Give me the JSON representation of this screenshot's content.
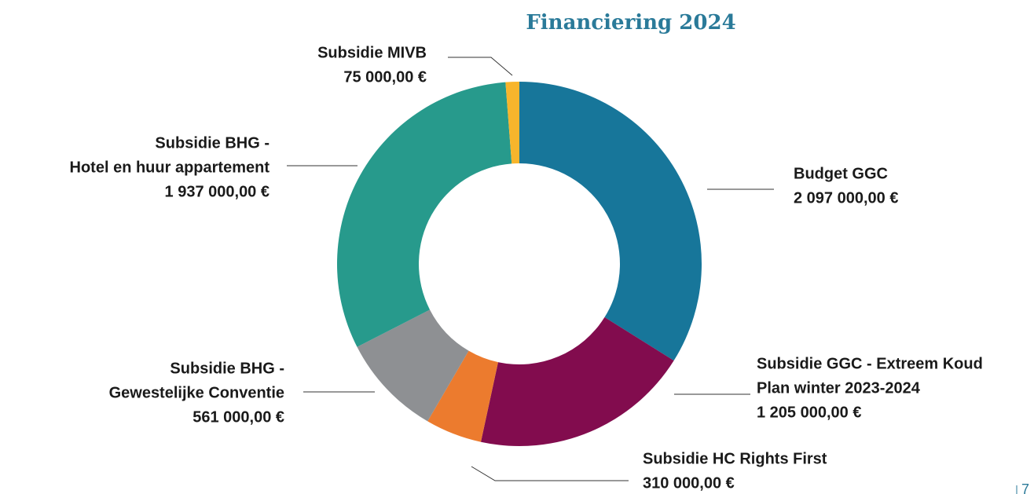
{
  "chart_data": {
    "type": "donut",
    "title": "Financiering 2024",
    "categories": [
      [
        "Budget GGC"
      ],
      [
        "Subsidie GGC - Extreem Koud",
        "Plan winter 2023-2024"
      ],
      [
        "Subsidie HC Rights First"
      ],
      [
        "Subsidie BHG -",
        "Gewestelijke Conventie"
      ],
      [
        "Subsidie BHG -",
        "Hotel en huur appartement"
      ],
      [
        "Subsidie MIVB"
      ]
    ],
    "values": [
      2097000,
      1205000,
      310000,
      561000,
      1937000,
      75000
    ],
    "value_labels": [
      "2 097 000,00 €",
      "1 205 000,00 €",
      "310 000,00 €",
      "561 000,00 €",
      "1 937 000,00 €",
      "75 000,00 €"
    ],
    "colors": [
      "#17769a",
      "#820c4e",
      "#ec7b2e",
      "#8e9093",
      "#279a8c",
      "#f7b52c"
    ]
  },
  "page_number": "7"
}
